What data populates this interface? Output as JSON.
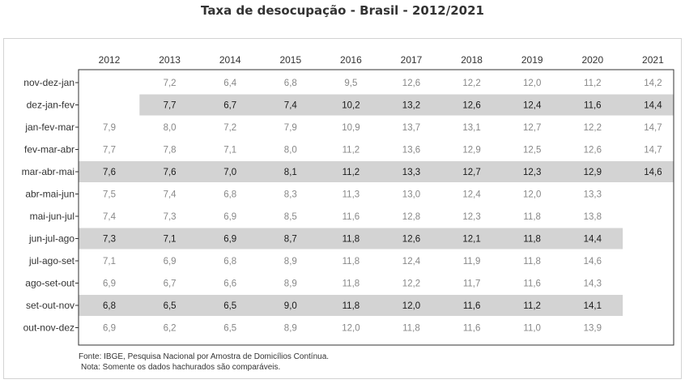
{
  "title": "Taxa de desocupação - Brasil - 2012/2021",
  "footer": {
    "source": "Fonte: IBGE, Pesquisa Nacional por Amostra de Domicílios Contínua.",
    "note": "Nota: Somente os dados hachurados são comparáveis."
  },
  "colors": {
    "highlight": "#d3d3d3",
    "text_normal": "#888888",
    "text_bold": "#1a1a1a",
    "axis": "#333333"
  },
  "chart_data": {
    "type": "table",
    "title": "Taxa de desocupação - Brasil - 2012/2021",
    "columns": [
      "2012",
      "2013",
      "2014",
      "2015",
      "2016",
      "2017",
      "2018",
      "2019",
      "2020",
      "2021"
    ],
    "rows": [
      {
        "label": "nov-dez-jan",
        "highlight": false,
        "values": [
          "",
          "7,2",
          "6,4",
          "6,8",
          "9,5",
          "12,6",
          "12,2",
          "12,0",
          "11,2",
          "14,2"
        ]
      },
      {
        "label": "dez-jan-fev",
        "highlight": true,
        "values": [
          "",
          "7,7",
          "6,7",
          "7,4",
          "10,2",
          "13,2",
          "12,6",
          "12,4",
          "11,6",
          "14,4"
        ]
      },
      {
        "label": "jan-fev-mar",
        "highlight": false,
        "values": [
          "7,9",
          "8,0",
          "7,2",
          "7,9",
          "10,9",
          "13,7",
          "13,1",
          "12,7",
          "12,2",
          "14,7"
        ]
      },
      {
        "label": "fev-mar-abr",
        "highlight": false,
        "values": [
          "7,7",
          "7,8",
          "7,1",
          "8,0",
          "11,2",
          "13,6",
          "12,9",
          "12,5",
          "12,6",
          "14,7"
        ]
      },
      {
        "label": "mar-abr-mai",
        "highlight": true,
        "values": [
          "7,6",
          "7,6",
          "7,0",
          "8,1",
          "11,2",
          "13,3",
          "12,7",
          "12,3",
          "12,9",
          "14,6"
        ]
      },
      {
        "label": "abr-mai-jun",
        "highlight": false,
        "values": [
          "7,5",
          "7,4",
          "6,8",
          "8,3",
          "11,3",
          "13,0",
          "12,4",
          "12,0",
          "13,3",
          ""
        ]
      },
      {
        "label": "mai-jun-jul",
        "highlight": false,
        "values": [
          "7,4",
          "7,3",
          "6,9",
          "8,5",
          "11,6",
          "12,8",
          "12,3",
          "11,8",
          "13,8",
          ""
        ]
      },
      {
        "label": "jun-jul-ago",
        "highlight": true,
        "values": [
          "7,3",
          "7,1",
          "6,9",
          "8,7",
          "11,8",
          "12,6",
          "12,1",
          "11,8",
          "14,4",
          ""
        ]
      },
      {
        "label": "jul-ago-set",
        "highlight": false,
        "values": [
          "7,1",
          "6,9",
          "6,8",
          "8,9",
          "11,8",
          "12,4",
          "11,9",
          "11,8",
          "14,6",
          ""
        ]
      },
      {
        "label": "ago-set-out",
        "highlight": false,
        "values": [
          "6,9",
          "6,7",
          "6,6",
          "8,9",
          "11,8",
          "12,2",
          "11,7",
          "11,6",
          "14,3",
          ""
        ]
      },
      {
        "label": "set-out-nov",
        "highlight": true,
        "values": [
          "6,8",
          "6,5",
          "6,5",
          "9,0",
          "11,8",
          "12,0",
          "11,6",
          "11,2",
          "14,1",
          ""
        ]
      },
      {
        "label": "out-nov-dez",
        "highlight": false,
        "values": [
          "6,9",
          "6,2",
          "6,5",
          "8,9",
          "12,0",
          "11,8",
          "11,6",
          "11,0",
          "13,9",
          ""
        ]
      }
    ]
  }
}
